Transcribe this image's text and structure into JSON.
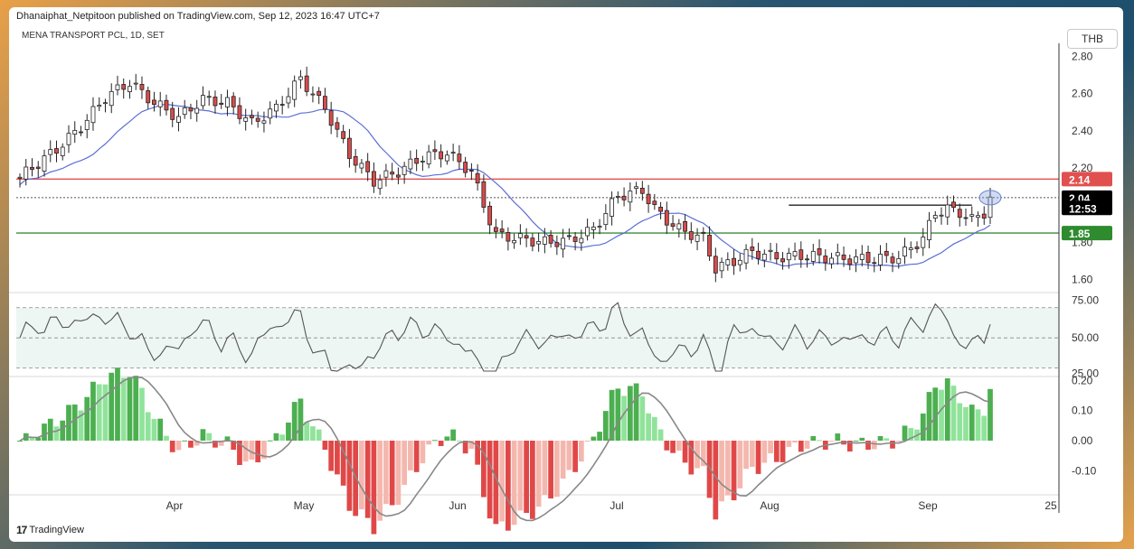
{
  "header": {
    "published": "Dhanaiphat_Netpitoon published on TradingView.com, Sep 12, 2023 16:47 UTC+7",
    "symbol": "MENA TRANSPORT PCL, 1D, SET",
    "currency": "THB",
    "logo_text": "TradingView"
  },
  "chart_data": {
    "type": "candlestick",
    "price_axis": {
      "ticks": [
        "2.80",
        "2.60",
        "2.40",
        "2.20",
        "1.80",
        "1.60"
      ],
      "ylim": [
        1.53,
        2.86
      ]
    },
    "price_labels": [
      {
        "text": "2.14",
        "value": 2.14,
        "color": "#e0504f"
      },
      {
        "text": "2.04",
        "value": 2.04,
        "color": "#000000"
      },
      {
        "text": "12:53",
        "value": 1.985,
        "color": "#000000"
      },
      {
        "text": "1.85",
        "value": 1.85,
        "color": "#2e8b2e"
      }
    ],
    "horizontal_lines": [
      {
        "value": 2.14,
        "color": "#e0504f"
      },
      {
        "value": 1.85,
        "color": "#3d8b3d"
      },
      {
        "value": 2.04,
        "color": "#555555",
        "style": "dotted"
      },
      {
        "value": 2.0,
        "color": "#222222",
        "from_index": 126,
        "to_index": 156
      }
    ],
    "time_axis": [
      "Apr",
      "May",
      "Jun",
      "Jul",
      "Aug",
      "Sep",
      "25"
    ],
    "rsi": {
      "ticks": [
        "75.00",
        "50.00",
        "25.00"
      ],
      "upper": 70,
      "lower": 30,
      "ylim": [
        25,
        80
      ]
    },
    "macd": {
      "ticks": [
        "0.20",
        "0.10",
        "0.00",
        "-0.10"
      ],
      "ylim": [
        -0.18,
        0.21
      ]
    },
    "colors": {
      "up": "#ffffff",
      "down": "#d94b4b",
      "ma": "#5b6fd6",
      "rsi": "#555555",
      "signal": "#888888"
    }
  }
}
